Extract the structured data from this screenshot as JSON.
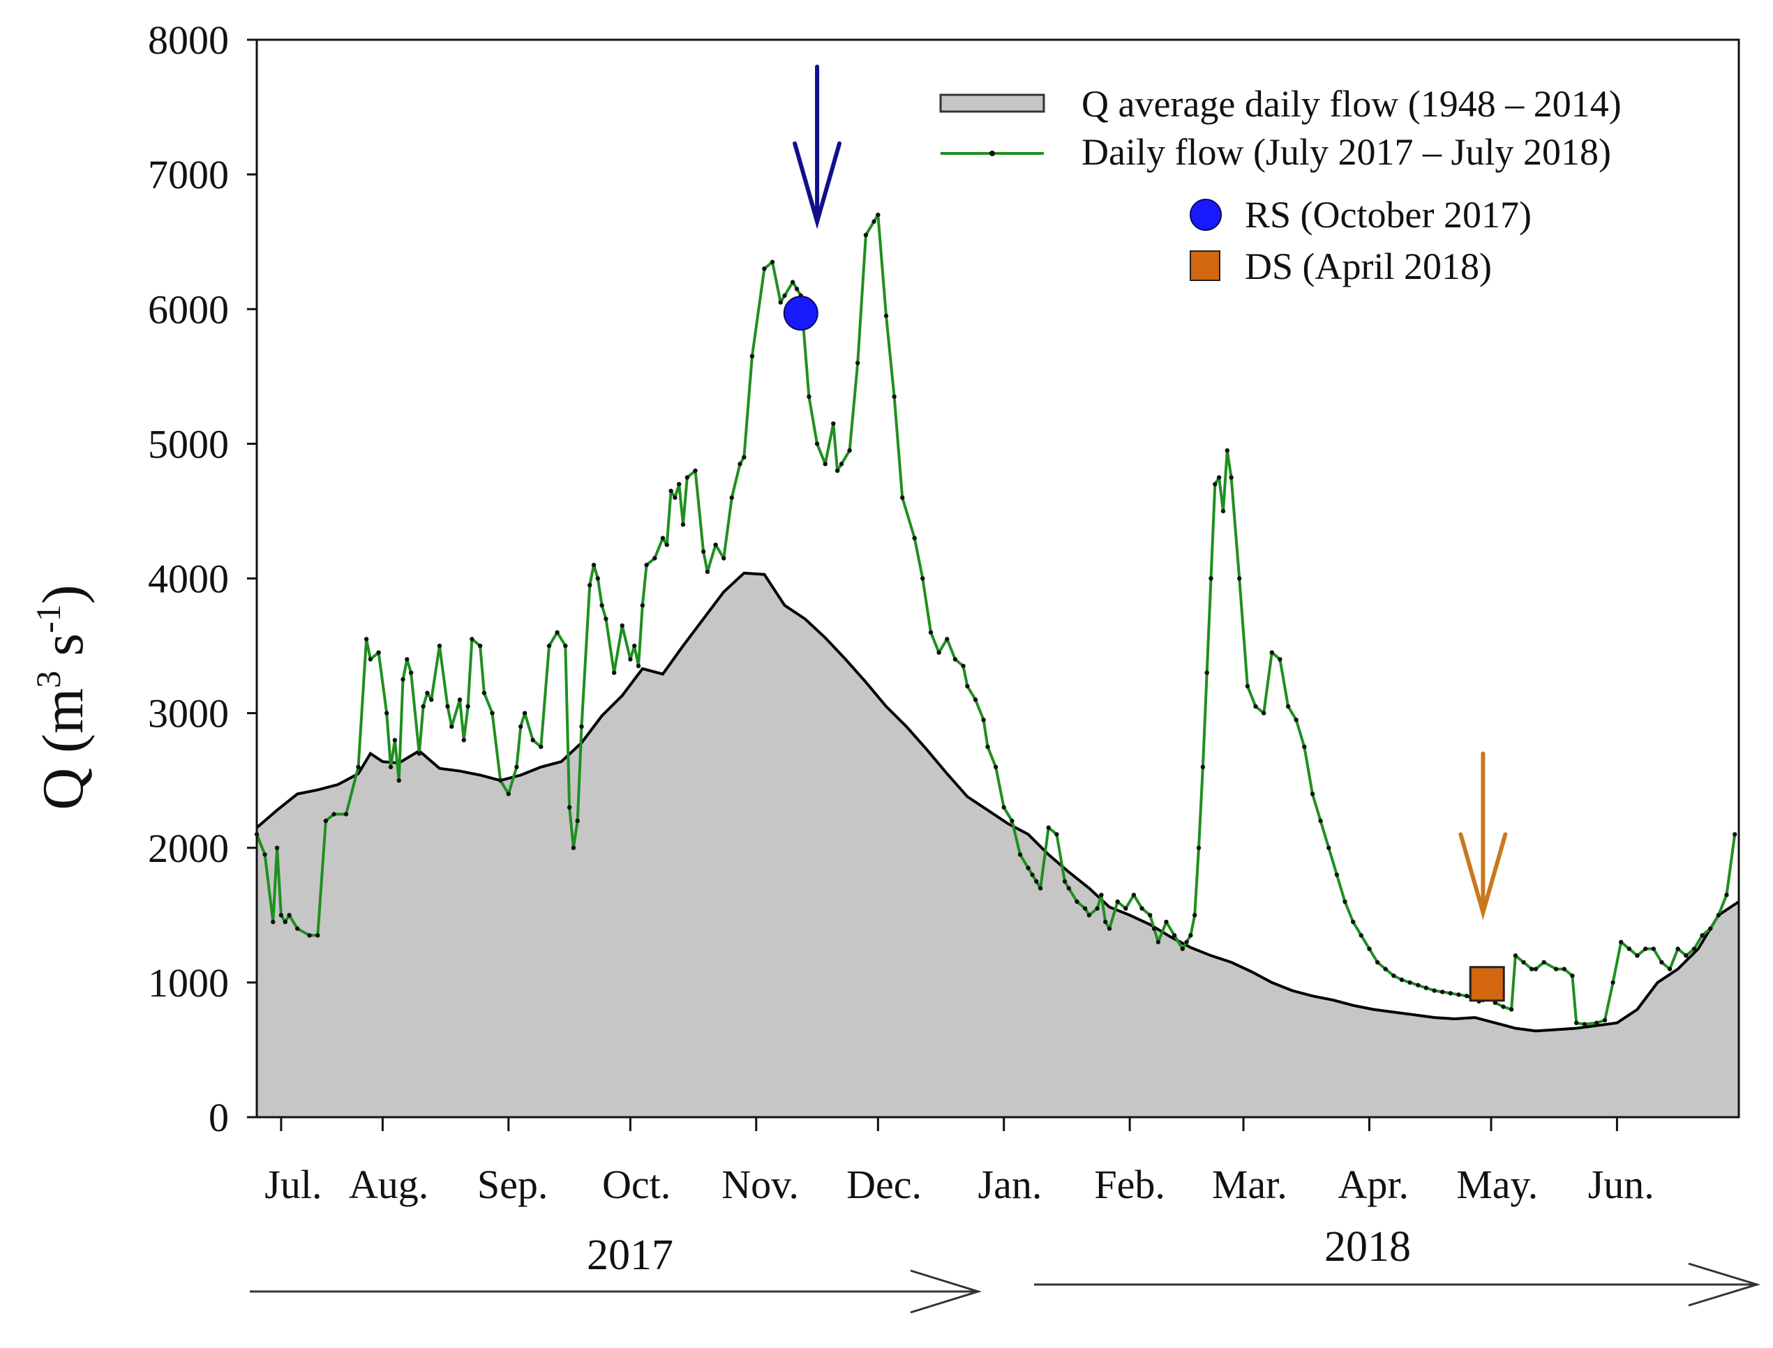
{
  "chart_data": {
    "type": "area+line",
    "ylabel": "Q (m",
    "ylabel_sup1": "3",
    "ylabel_mid": " s",
    "ylabel_sup2": "-1",
    "ylabel_end": ")",
    "ylim": [
      0,
      8000
    ],
    "y_ticks": [
      "0",
      "1000",
      "2000",
      "3000",
      "4000",
      "5000",
      "6000",
      "7000",
      "8000"
    ],
    "x_range_days": [
      0,
      365
    ],
    "months": [
      "Jul.",
      "Aug.",
      "Sep.",
      "Oct.",
      "Nov.",
      "Dec.",
      "Jan.",
      "Feb.",
      "Mar.",
      "Apr.",
      "May.",
      "Jun."
    ],
    "years": [
      "2017",
      "2018"
    ],
    "legend": {
      "average": "Q average daily flow (1948 – 2014)",
      "daily": "Daily flow (July 2017 – July 2018)",
      "rs": "RS (October 2017)",
      "ds": "DS (April 2018)"
    },
    "colors": {
      "average_fill": "#c6c6c6",
      "average_line": "#000000",
      "daily_line": "#1f8f1f",
      "daily_marker": "#111111",
      "rs_marker": "#1a1aff",
      "rs_arrow": "#10108a",
      "ds_marker": "#d2670f",
      "ds_arrow": "#c8791e"
    },
    "series": [
      {
        "name": "Q average daily flow (1948 – 2014)",
        "style": "area",
        "x": [
          0,
          5,
          10,
          15,
          20,
          25,
          28,
          31,
          35,
          40,
          45,
          50,
          55,
          60,
          65,
          70,
          75,
          80,
          85,
          90,
          95,
          100,
          105,
          110,
          115,
          120,
          125,
          130,
          135,
          140,
          145,
          150,
          155,
          160,
          165,
          170,
          175,
          180,
          185,
          190,
          195,
          200,
          205,
          210,
          215,
          220,
          225,
          230,
          235,
          240,
          245,
          250,
          255,
          260,
          265,
          270,
          275,
          280,
          285,
          290,
          295,
          300,
          305,
          310,
          315,
          320,
          325,
          330,
          335,
          340,
          345,
          350,
          355,
          360,
          365
        ],
        "values": [
          2150,
          2280,
          2400,
          2430,
          2470,
          2550,
          2700,
          2640,
          2630,
          2720,
          2590,
          2570,
          2540,
          2500,
          2540,
          2600,
          2640,
          2780,
          2980,
          3130,
          3330,
          3290,
          3500,
          3700,
          3900,
          4040,
          4030,
          3800,
          3700,
          3560,
          3400,
          3230,
          3050,
          2900,
          2730,
          2550,
          2380,
          2280,
          2180,
          2100,
          1950,
          1820,
          1700,
          1560,
          1500,
          1430,
          1340,
          1260,
          1200,
          1150,
          1080,
          1000,
          940,
          900,
          870,
          830,
          800,
          780,
          760,
          740,
          730,
          740,
          700,
          660,
          640,
          650,
          660,
          680,
          700,
          800,
          1000,
          1100,
          1250,
          1500,
          1600
        ]
      },
      {
        "name": "Daily flow (July 2017 – July 2018)",
        "style": "line+markers",
        "x": [
          0,
          2,
          4,
          5,
          6,
          7,
          8,
          10,
          13,
          15,
          17,
          19,
          22,
          25,
          27,
          28,
          30,
          32,
          33,
          34,
          35,
          36,
          37,
          38,
          40,
          41,
          42,
          43,
          45,
          47,
          48,
          50,
          51,
          52,
          53,
          55,
          56,
          58,
          60,
          62,
          64,
          65,
          66,
          68,
          70,
          72,
          74,
          76,
          77,
          78,
          79,
          80,
          82,
          83,
          84,
          85,
          86,
          88,
          90,
          92,
          93,
          94,
          95,
          96,
          98,
          100,
          101,
          102,
          103,
          104,
          105,
          106,
          108,
          110,
          111,
          113,
          115,
          117,
          119,
          120,
          122,
          125,
          127,
          129,
          130,
          132,
          133,
          134,
          136,
          138,
          140,
          142,
          143,
          144,
          146,
          148,
          150,
          152,
          153,
          155,
          157,
          159,
          162,
          164,
          166,
          168,
          170,
          172,
          174,
          175,
          177,
          179,
          180,
          182,
          184,
          186,
          188,
          190,
          191,
          192,
          193,
          195,
          197,
          199,
          200,
          202,
          204,
          205,
          207,
          208,
          209,
          210,
          212,
          214,
          216,
          218,
          220,
          221,
          222,
          224,
          226,
          228,
          229,
          230,
          231,
          232,
          233,
          234,
          235,
          236,
          237,
          238,
          239,
          240,
          242,
          244,
          246,
          248,
          250,
          252,
          254,
          256,
          258,
          260,
          262,
          264,
          266,
          268,
          270,
          272,
          274,
          276,
          278,
          280,
          282,
          284,
          286,
          288,
          290,
          292,
          294,
          296,
          298,
          299,
          300,
          301,
          302,
          303,
          304,
          305,
          307,
          309,
          310,
          312,
          314,
          315,
          317,
          320,
          322,
          324,
          325,
          327,
          330,
          332,
          334,
          336,
          338,
          340,
          342,
          344,
          346,
          348,
          350,
          352,
          354,
          356,
          358,
          360,
          362,
          364
        ],
        "values": [
          2100,
          1950,
          1450,
          2000,
          1500,
          1450,
          1500,
          1400,
          1350,
          1350,
          2200,
          2250,
          2250,
          2600,
          3550,
          3400,
          3450,
          3000,
          2600,
          2800,
          2500,
          3250,
          3400,
          3300,
          2700,
          3050,
          3150,
          3100,
          3500,
          3050,
          2900,
          3100,
          2800,
          3050,
          3550,
          3500,
          3150,
          3000,
          2500,
          2400,
          2600,
          2900,
          3000,
          2800,
          2750,
          3500,
          3600,
          3500,
          2300,
          2000,
          2200,
          2900,
          3950,
          4100,
          4000,
          3800,
          3700,
          3300,
          3650,
          3400,
          3500,
          3350,
          3800,
          4100,
          4150,
          4300,
          4250,
          4650,
          4600,
          4700,
          4400,
          4750,
          4800,
          4200,
          4050,
          4250,
          4150,
          4600,
          4850,
          4900,
          5650,
          6300,
          6350,
          6050,
          6100,
          6200,
          6150,
          6100,
          5350,
          5000,
          4850,
          5150,
          4800,
          4850,
          4950,
          5600,
          6550,
          6650,
          6700,
          5950,
          5350,
          4600,
          4300,
          4000,
          3600,
          3450,
          3550,
          3400,
          3350,
          3200,
          3100,
          2950,
          2750,
          2600,
          2300,
          2200,
          1950,
          1850,
          1800,
          1750,
          1700,
          2150,
          2100,
          1750,
          1700,
          1600,
          1550,
          1500,
          1550,
          1650,
          1450,
          1400,
          1600,
          1550,
          1650,
          1550,
          1500,
          1400,
          1300,
          1450,
          1350,
          1250,
          1300,
          1350,
          1500,
          2000,
          2600,
          3300,
          4000,
          4700,
          4750,
          4500,
          4950,
          4750,
          4000,
          3200,
          3050,
          3000,
          3450,
          3400,
          3050,
          2950,
          2750,
          2400,
          2200,
          2000,
          1800,
          1600,
          1450,
          1350,
          1250,
          1150,
          1100,
          1050,
          1020,
          1000,
          980,
          960,
          940,
          930,
          920,
          910,
          900,
          890,
          880,
          860,
          870,
          1000,
          920,
          850,
          820,
          800,
          1200,
          1150,
          1100,
          1100,
          1150,
          1100,
          1100,
          1050,
          700,
          690,
          700,
          720,
          1000,
          1300,
          1250,
          1200,
          1250,
          1250,
          1150,
          1100,
          1250,
          1200,
          1250,
          1350,
          1400,
          1500,
          1650,
          2100
        ]
      }
    ],
    "points": [
      {
        "name": "RS (October 2017)",
        "x": 134,
        "y": 5970,
        "marker": "circle"
      },
      {
        "name": "DS (April 2018)",
        "x": 303,
        "y": 990,
        "marker": "square"
      }
    ],
    "arrows": [
      {
        "name": "RS arrow",
        "x": 138,
        "y_from": 7800,
        "y_to": 6650
      },
      {
        "name": "DS arrow",
        "x": 302,
        "y_from": 2700,
        "y_to": 1520
      }
    ]
  }
}
